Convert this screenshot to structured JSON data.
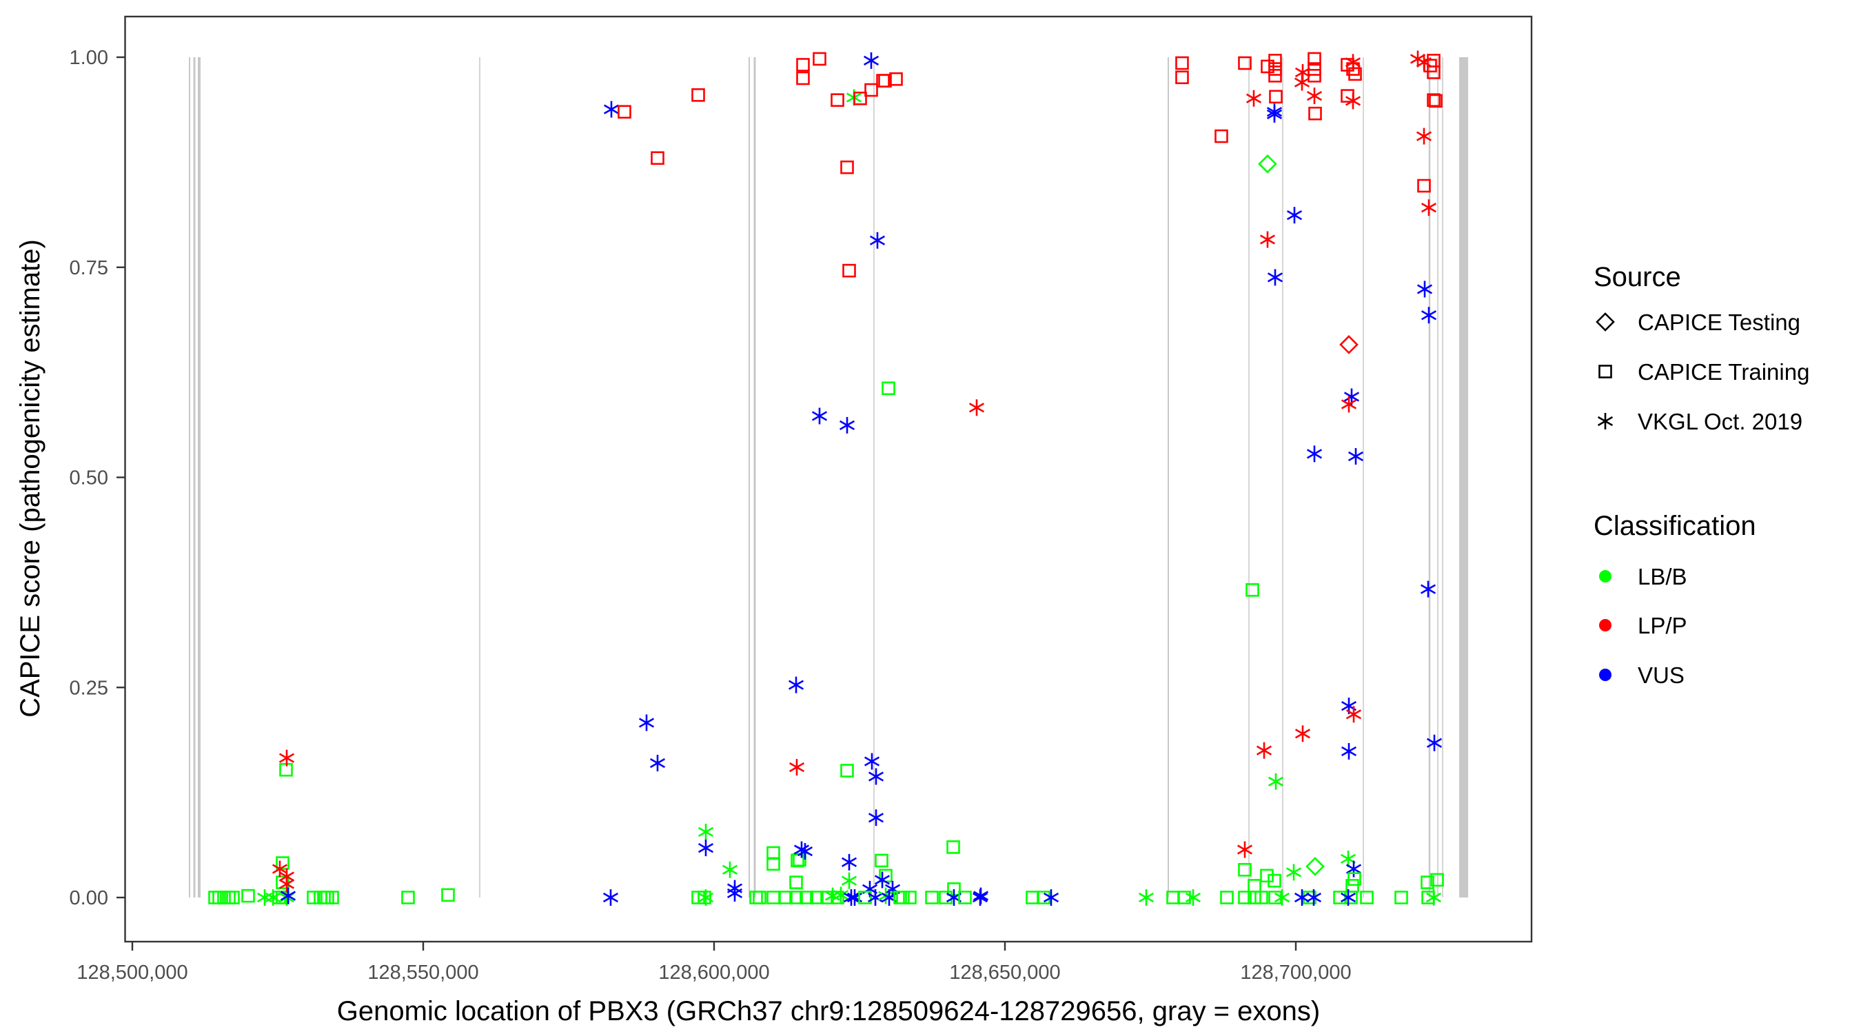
{
  "chart_data": {
    "type": "scatter",
    "title": "",
    "xlabel": "Genomic location of PBX3 (GRCh37 chr9:128509624-128729656, gray = exons)",
    "ylabel": "CAPICE score (pathogenicity estimate)",
    "xlim": [
      128494000,
      128734000
    ],
    "ylim": [
      -0.0565,
      1.0485
    ],
    "x_ticks": [
      128500000,
      128550000,
      128600000,
      128650000,
      128700000
    ],
    "x_tick_labels": [
      "128,500,000",
      "128,550,000",
      "128,600,000",
      "128,650,000",
      "128,700,000"
    ],
    "y_ticks": [
      0,
      0.25,
      0.5,
      0.75,
      1
    ],
    "y_tick_labels": [
      "0.00",
      "0.25",
      "0.50",
      "0.75",
      "1.00"
    ],
    "grid": false,
    "exon_color": "#c8c8c8",
    "exons": [
      [
        128509716,
        128509953
      ],
      [
        128510486,
        128510841
      ],
      [
        128511256,
        128511730
      ],
      [
        128559626,
        128559806
      ],
      [
        128605925,
        128606161
      ],
      [
        128606813,
        128607169
      ],
      [
        128627400,
        128627576
      ],
      [
        128677963,
        128678199
      ],
      [
        128691855,
        128692031
      ],
      [
        128697661,
        128697837
      ],
      [
        128711523,
        128711699
      ],
      [
        128722838,
        128723134
      ],
      [
        128724320,
        128724496
      ],
      [
        128725149,
        128725325
      ],
      [
        128728081,
        128729621
      ]
    ],
    "legend_position": "right",
    "legend": {
      "source": {
        "title": "Source",
        "items": [
          {
            "label": "CAPICE Testing",
            "shape": "diamond"
          },
          {
            "label": "CAPICE Training",
            "shape": "square"
          },
          {
            "label": "VKGL Oct. 2019",
            "shape": "asterisk"
          }
        ]
      },
      "classification": {
        "title": "Classification",
        "items": [
          {
            "label": "LB/B",
            "color": "#00ff00"
          },
          {
            "label": "LP/P",
            "color": "#ff0000"
          },
          {
            "label": "VUS",
            "color": "#0000ff"
          }
        ]
      }
    },
    "point_fields": [
      "position",
      "score",
      "source_index",
      "classification_index"
    ],
    "points": [
      [
        128514218,
        0.0,
        1,
        0
      ],
      [
        128514929,
        0.0,
        1,
        0
      ],
      [
        128515758,
        0.0,
        1,
        0
      ],
      [
        128516588,
        0.0,
        1,
        0
      ],
      [
        128517299,
        0.0,
        1,
        0
      ],
      [
        128519905,
        0.002,
        1,
        0
      ],
      [
        128522749,
        0.0,
        2,
        0
      ],
      [
        128524171,
        0.0,
        2,
        0
      ],
      [
        128525237,
        0.0,
        1,
        0
      ],
      [
        128525829,
        0.0,
        1,
        0
      ],
      [
        128525829,
        0.041,
        1,
        0
      ],
      [
        128525829,
        0.018,
        1,
        0
      ],
      [
        128526540,
        0.0,
        2,
        0
      ],
      [
        128526422,
        0.152,
        1,
        0
      ],
      [
        128526540,
        0.166,
        2,
        1
      ],
      [
        128525355,
        0.034,
        2,
        1
      ],
      [
        128526540,
        0.025,
        2,
        1
      ],
      [
        128526540,
        0.016,
        2,
        1
      ],
      [
        128526777,
        0.002,
        2,
        2
      ],
      [
        128531161,
        0.0,
        1,
        0
      ],
      [
        128532346,
        0.0,
        1,
        0
      ],
      [
        128532938,
        0.0,
        1,
        0
      ],
      [
        128533531,
        0.0,
        1,
        0
      ],
      [
        128534360,
        0.0,
        1,
        0
      ],
      [
        128547393,
        0.0,
        1,
        0
      ],
      [
        128554265,
        0.003,
        1,
        0
      ],
      [
        128582227,
        0.0,
        2,
        2
      ],
      [
        128582346,
        0.938,
        2,
        2
      ],
      [
        128584597,
        0.935,
        1,
        1
      ],
      [
        128590284,
        0.88,
        1,
        1
      ],
      [
        128597275,
        0.955,
        1,
        1
      ],
      [
        128588389,
        0.208,
        2,
        2
      ],
      [
        128590284,
        0.16,
        2,
        2
      ],
      [
        128598578,
        0.078,
        2,
        0
      ],
      [
        128598578,
        0.059,
        2,
        2
      ],
      [
        128597275,
        0.0,
        1,
        0
      ],
      [
        128598341,
        0.0,
        1,
        0
      ],
      [
        128598578,
        0.0,
        2,
        0
      ],
      [
        128602725,
        0.033,
        2,
        0
      ],
      [
        128603555,
        0.011,
        2,
        2
      ],
      [
        128603555,
        0.005,
        2,
        2
      ],
      [
        128607227,
        0.0,
        1,
        0
      ],
      [
        128607820,
        0.0,
        1,
        0
      ],
      [
        128610190,
        0.053,
        1,
        0
      ],
      [
        128610190,
        0.04,
        1,
        0
      ],
      [
        128610190,
        0.0,
        1,
        0
      ],
      [
        128612322,
        0.0,
        1,
        0
      ],
      [
        128614100,
        0.0,
        1,
        0
      ],
      [
        128614100,
        0.018,
        1,
        0
      ],
      [
        128614336,
        0.044,
        1,
        0
      ],
      [
        128614692,
        0.045,
        1,
        0
      ],
      [
        128615047,
        0.057,
        2,
        2
      ],
      [
        128615640,
        0.055,
        2,
        2
      ],
      [
        128614100,
        0.253,
        2,
        2
      ],
      [
        128614218,
        0.155,
        2,
        1
      ],
      [
        128615284,
        0.991,
        1,
        1
      ],
      [
        128615284,
        0.975,
        1,
        1
      ],
      [
        128618128,
        0.998,
        1,
        1
      ],
      [
        128618128,
        0.573,
        2,
        2
      ],
      [
        128622867,
        0.562,
        2,
        2
      ],
      [
        128622867,
        0.869,
        1,
        1
      ],
      [
        128623223,
        0.746,
        1,
        1
      ],
      [
        128621209,
        0.949,
        1,
        1
      ],
      [
        128624052,
        0.952,
        2,
        0
      ],
      [
        128625118,
        0.951,
        1,
        1
      ],
      [
        128627014,
        0.961,
        1,
        1
      ],
      [
        128627014,
        0.996,
        2,
        2
      ],
      [
        128629028,
        0.972,
        1,
        1
      ],
      [
        128629384,
        0.972,
        1,
        1
      ],
      [
        128631280,
        0.974,
        1,
        1
      ],
      [
        128628081,
        0.782,
        2,
        2
      ],
      [
        128629976,
        0.606,
        1,
        0
      ],
      [
        128622867,
        0.151,
        1,
        0
      ],
      [
        128627133,
        0.162,
        2,
        2
      ],
      [
        128627844,
        0.144,
        2,
        2
      ],
      [
        128627844,
        0.095,
        2,
        2
      ],
      [
        128623223,
        0.042,
        2,
        2
      ],
      [
        128628791,
        0.044,
        1,
        0
      ],
      [
        128629502,
        0.026,
        1,
        0
      ],
      [
        128623223,
        0.02,
        2,
        0
      ],
      [
        128628910,
        0.021,
        2,
        2
      ],
      [
        128626777,
        0.01,
        2,
        2
      ],
      [
        128630687,
        0.01,
        2,
        2
      ],
      [
        128615877,
        0.0,
        1,
        0
      ],
      [
        128617654,
        0.0,
        1,
        0
      ],
      [
        128619431,
        0.0,
        1,
        0
      ],
      [
        128620379,
        0.002,
        2,
        0
      ],
      [
        128621209,
        0.0,
        1,
        0
      ],
      [
        128621801,
        0.003,
        2,
        0
      ],
      [
        128623578,
        0.0,
        2,
        2
      ],
      [
        128624171,
        0.0,
        2,
        2
      ],
      [
        128625948,
        0.0,
        1,
        0
      ],
      [
        128627725,
        0.0,
        2,
        2
      ],
      [
        128629502,
        0.002,
        2,
        0
      ],
      [
        128630095,
        0.0,
        2,
        2
      ],
      [
        128631991,
        0.0,
        1,
        0
      ],
      [
        128632464,
        0.0,
        1,
        0
      ],
      [
        128633649,
        0.0,
        1,
        0
      ],
      [
        128637441,
        0.0,
        1,
        0
      ],
      [
        128639810,
        0.0,
        1,
        0
      ],
      [
        128641114,
        0.06,
        1,
        0
      ],
      [
        128641232,
        0.01,
        1,
        0
      ],
      [
        128641232,
        0.0,
        2,
        2
      ],
      [
        128643128,
        0.0,
        1,
        0
      ],
      [
        128645142,
        0.583,
        2,
        1
      ],
      [
        128645853,
        0.002,
        2,
        2
      ],
      [
        128645735,
        0.0,
        2,
        2
      ],
      [
        128654739,
        0.0,
        1,
        0
      ],
      [
        128656635,
        0.0,
        1,
        0
      ],
      [
        128657938,
        0.0,
        2,
        2
      ],
      [
        128674289,
        0.0,
        2,
        0
      ],
      [
        128678910,
        0.0,
        1,
        0
      ],
      [
        128680806,
        0.0,
        1,
        0
      ],
      [
        128682346,
        0.0,
        2,
        0
      ],
      [
        128680450,
        0.993,
        1,
        1
      ],
      [
        128680450,
        0.976,
        1,
        1
      ],
      [
        128691232,
        0.993,
        1,
        1
      ],
      [
        128687204,
        0.906,
        1,
        1
      ],
      [
        128692773,
        0.951,
        2,
        1
      ],
      [
        128695142,
        0.989,
        1,
        1
      ],
      [
        128696445,
        0.996,
        1,
        1
      ],
      [
        128696445,
        0.986,
        1,
        1
      ],
      [
        128696445,
        0.978,
        1,
        1
      ],
      [
        128696564,
        0.953,
        1,
        1
      ],
      [
        128696327,
        0.935,
        2,
        2
      ],
      [
        128696327,
        0.932,
        2,
        2
      ],
      [
        128695142,
        0.873,
        0,
        0
      ],
      [
        128701185,
        0.982,
        2,
        1
      ],
      [
        128701066,
        0.97,
        2,
        1
      ],
      [
        128703199,
        0.998,
        1,
        1
      ],
      [
        128703199,
        0.986,
        1,
        1
      ],
      [
        128703199,
        0.978,
        1,
        1
      ],
      [
        128703199,
        0.954,
        2,
        1
      ],
      [
        128703318,
        0.933,
        1,
        1
      ],
      [
        128708886,
        0.991,
        1,
        1
      ],
      [
        128709834,
        0.994,
        2,
        1
      ],
      [
        128709834,
        0.986,
        1,
        1
      ],
      [
        128710190,
        0.98,
        1,
        1
      ],
      [
        128708886,
        0.954,
        1,
        1
      ],
      [
        128709834,
        0.948,
        2,
        1
      ],
      [
        128720972,
        0.998,
        2,
        1
      ],
      [
        128722038,
        0.994,
        2,
        1
      ],
      [
        128723104,
        0.99,
        1,
        1
      ],
      [
        128723697,
        0.996,
        1,
        1
      ],
      [
        128723697,
        0.982,
        1,
        1
      ],
      [
        128723697,
        0.949,
        1,
        1
      ],
      [
        128724052,
        0.948,
        1,
        1
      ],
      [
        128722038,
        0.906,
        2,
        1
      ],
      [
        128722038,
        0.847,
        1,
        1
      ],
      [
        128722867,
        0.821,
        2,
        1
      ],
      [
        128699763,
        0.812,
        2,
        2
      ],
      [
        128695142,
        0.783,
        2,
        1
      ],
      [
        128696445,
        0.738,
        2,
        2
      ],
      [
        128722156,
        0.724,
        2,
        2
      ],
      [
        128722867,
        0.693,
        2,
        2
      ],
      [
        128709123,
        0.658,
        0,
        1
      ],
      [
        128709597,
        0.596,
        2,
        2
      ],
      [
        128709123,
        0.587,
        2,
        1
      ],
      [
        128703199,
        0.528,
        2,
        2
      ],
      [
        128710308,
        0.525,
        2,
        2
      ],
      [
        128692536,
        0.366,
        1,
        0
      ],
      [
        128722749,
        0.367,
        2,
        2
      ],
      [
        128709123,
        0.228,
        2,
        2
      ],
      [
        128709953,
        0.218,
        2,
        1
      ],
      [
        128701185,
        0.195,
        2,
        1
      ],
      [
        128694550,
        0.175,
        2,
        1
      ],
      [
        128709123,
        0.174,
        2,
        2
      ],
      [
        128723815,
        0.184,
        2,
        2
      ],
      [
        128696564,
        0.138,
        2,
        0
      ],
      [
        128691232,
        0.057,
        2,
        1
      ],
      [
        128691232,
        0.033,
        1,
        0
      ],
      [
        128692891,
        0.014,
        1,
        0
      ],
      [
        128695024,
        0.026,
        1,
        0
      ],
      [
        128696327,
        0.02,
        1,
        0
      ],
      [
        128699645,
        0.03,
        2,
        0
      ],
      [
        128703318,
        0.037,
        0,
        0
      ],
      [
        128709005,
        0.046,
        2,
        0
      ],
      [
        128709953,
        0.034,
        2,
        2
      ],
      [
        128710071,
        0.022,
        1,
        0
      ],
      [
        128709716,
        0.014,
        1,
        0
      ],
      [
        128722630,
        0.018,
        1,
        0
      ],
      [
        128724289,
        0.021,
        1,
        0
      ],
      [
        128723697,
        0.0,
        2,
        0
      ],
      [
        128691232,
        0.0,
        1,
        0
      ],
      [
        128692891,
        0.0,
        1,
        0
      ],
      [
        128694076,
        0.0,
        1,
        0
      ],
      [
        128696445,
        0.0,
        1,
        0
      ],
      [
        128702370,
        0.0,
        1,
        0
      ],
      [
        128707583,
        0.0,
        1,
        0
      ],
      [
        128709479,
        0.0,
        1,
        0
      ],
      [
        128712204,
        0.0,
        1,
        0
      ],
      [
        128718128,
        0.0,
        1,
        0
      ],
      [
        128722749,
        0.0,
        1,
        0
      ],
      [
        128701066,
        0.0,
        2,
        2
      ],
      [
        128703081,
        0.0,
        2,
        2
      ],
      [
        128709005,
        0.0,
        2,
        2
      ],
      [
        128697630,
        0.0,
        2,
        0
      ],
      [
        128688152,
        0.0,
        1,
        0
      ]
    ]
  }
}
